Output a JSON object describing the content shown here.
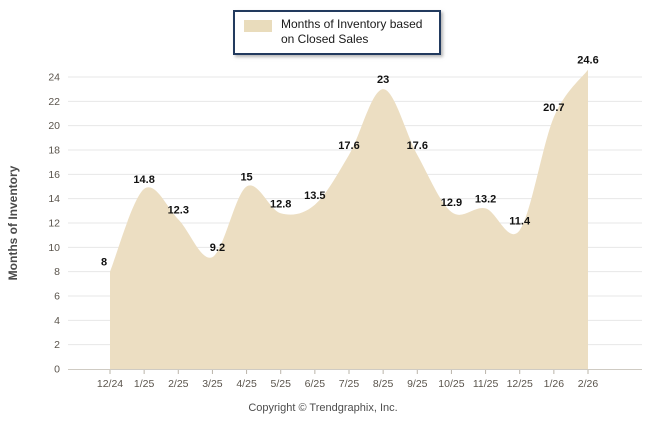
{
  "legend": {
    "label": "Months of Inventory based on Closed Sales",
    "swatch_color": "#e9dcbc"
  },
  "footer": {
    "copyright": "Copyright © Trendgraphix, Inc."
  },
  "chart_data": {
    "type": "area",
    "title": "",
    "xlabel": "",
    "ylabel": "Months of Inventory",
    "categories": [
      "12/24",
      "1/25",
      "2/25",
      "3/25",
      "4/25",
      "5/25",
      "6/25",
      "7/25",
      "8/25",
      "9/25",
      "10/25",
      "11/25",
      "12/25",
      "1/26",
      "2/26"
    ],
    "series": [
      {
        "name": "Months of Inventory based on Closed Sales",
        "values": [
          8,
          14.8,
          12.3,
          9.2,
          15,
          12.8,
          13.5,
          17.6,
          23,
          17.6,
          12.9,
          13.2,
          11.4,
          20.7,
          24.6
        ]
      }
    ],
    "data_labels": [
      "8",
      "14.8",
      "12.3",
      "9.2",
      "15",
      "12.8",
      "13.5",
      "17.6",
      "23",
      "17.6",
      "12.9",
      "13.2",
      "11.4",
      "20.7",
      "24.6"
    ],
    "ylim": [
      0,
      24
    ],
    "ytick_step": 2,
    "grid": true,
    "smooth": true,
    "legend_position": "top-center",
    "colors": {
      "area_fill": "#ecdec2",
      "gridline": "#e7e7e7",
      "axis_line": "#cfcbc3",
      "tick_mark": "#bab4aa",
      "tick_label": "#5a544c",
      "data_label": "#111111",
      "axis_title": "#4a4a4a"
    }
  }
}
